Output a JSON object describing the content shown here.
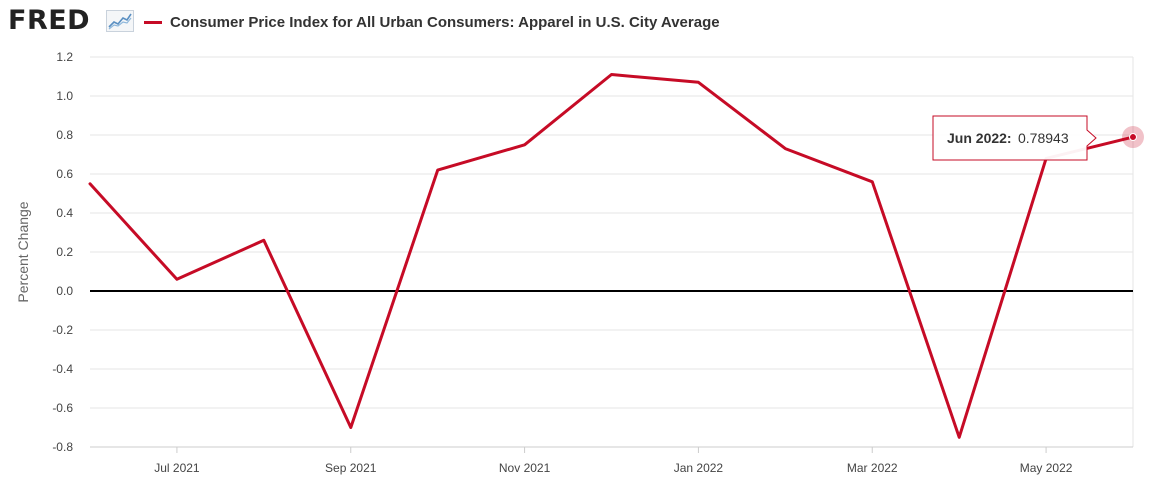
{
  "header": {
    "logo_text": "FRED",
    "title": "Consumer Price Index for All Urban Consumers: Apparel in U.S. City Average"
  },
  "colors": {
    "series": "#c60b26",
    "zero_line": "#000000",
    "grid": "#e6e6e6",
    "logo": "#222222"
  },
  "chart_data": {
    "type": "line",
    "title": "Consumer Price Index for All Urban Consumers: Apparel in U.S. City Average",
    "xlabel": "",
    "ylabel": "Percent Change",
    "ylim": [
      -0.8,
      1.2
    ],
    "yticks": [
      1.2,
      1.0,
      0.8,
      0.6,
      0.4,
      0.2,
      0.0,
      -0.2,
      -0.4,
      -0.6,
      -0.8
    ],
    "ytick_labels": [
      "1.2",
      "1.0",
      "0.8",
      "0.6",
      "0.4",
      "0.2",
      "0.0",
      "-0.2",
      "-0.4",
      "-0.6",
      "-0.8"
    ],
    "x_tick_labels": [
      "Jul 2021",
      "Sep 2021",
      "Nov 2021",
      "Jan 2022",
      "Mar 2022",
      "May 2022"
    ],
    "x_tick_dates": [
      "2021-07",
      "2021-09",
      "2021-11",
      "2022-01",
      "2022-03",
      "2022-05"
    ],
    "grid": true,
    "zero_line": true,
    "series": [
      {
        "name": "Consumer Price Index for All Urban Consumers: Apparel in U.S. City Average",
        "x": [
          "2021-06",
          "2021-07",
          "2021-08",
          "2021-09",
          "2021-10",
          "2021-11",
          "2021-12",
          "2022-01",
          "2022-02",
          "2022-03",
          "2022-04",
          "2022-05",
          "2022-06"
        ],
        "values": [
          0.55,
          0.06,
          0.26,
          -0.7,
          0.62,
          0.75,
          1.11,
          1.07,
          0.73,
          0.56,
          -0.75,
          0.68,
          0.78943
        ]
      }
    ],
    "tooltip": {
      "label": "Jun 2022:",
      "value": "0.78943",
      "point_index": 12
    }
  }
}
